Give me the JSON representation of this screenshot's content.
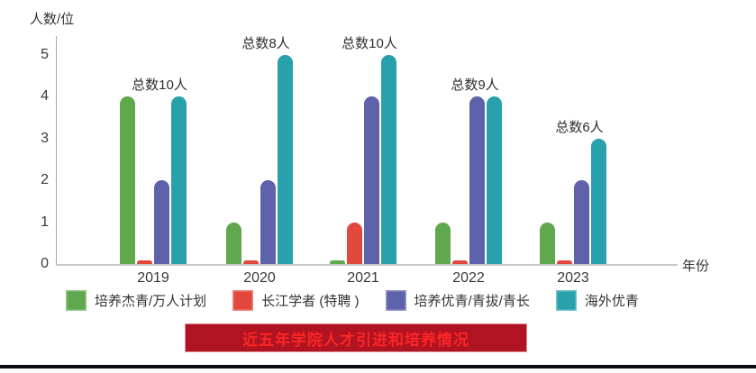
{
  "banner": {
    "text": "近五年学院人才引进和培养情况",
    "bg_color": "#b01321",
    "text_color": "#fb2626",
    "border_color": "#de8f8f"
  },
  "bottom_bar_color": "#0c0c14",
  "axis_text_color": "#3a3a3a",
  "chart_data": {
    "type": "bar",
    "title": "近五年学院人才引进和培养情况",
    "ylabel": "人数/位",
    "xlabel": "年份",
    "categories": [
      "2019",
      "2020",
      "2021",
      "2022",
      "2023"
    ],
    "series": [
      {
        "name": "培养杰青/万人计划",
        "color": "#5fa84d",
        "values": [
          4,
          1,
          0,
          1,
          1
        ]
      },
      {
        "name": "长江学者 (特聘 )",
        "color": "#e2473e",
        "values": [
          0,
          0,
          1,
          0,
          0
        ]
      },
      {
        "name": "培养优青/青拔/青长",
        "color": "#5e62aa",
        "values": [
          2,
          2,
          4,
          4,
          2
        ]
      },
      {
        "name": "海外优青",
        "color": "#28a1ad",
        "values": [
          4,
          5,
          5,
          4,
          3
        ]
      }
    ],
    "annotations": [
      "总数10人",
      "总数8人",
      "总数10人",
      "总数9人",
      "总数6人"
    ],
    "ylim": [
      0,
      5
    ],
    "yticks": [
      0,
      1,
      2,
      3,
      4,
      5
    ],
    "grid": false,
    "legend_position": "bottom"
  },
  "legend": [
    {
      "label": "培养杰青/万人计划",
      "color": "#5fa84d"
    },
    {
      "label": "长江学者 (特聘 )",
      "color": "#e2473e"
    },
    {
      "label": "培养优青/青拔/青长",
      "color": "#5e62aa"
    },
    {
      "label": "海外优青",
      "color": "#28a1ad"
    }
  ]
}
